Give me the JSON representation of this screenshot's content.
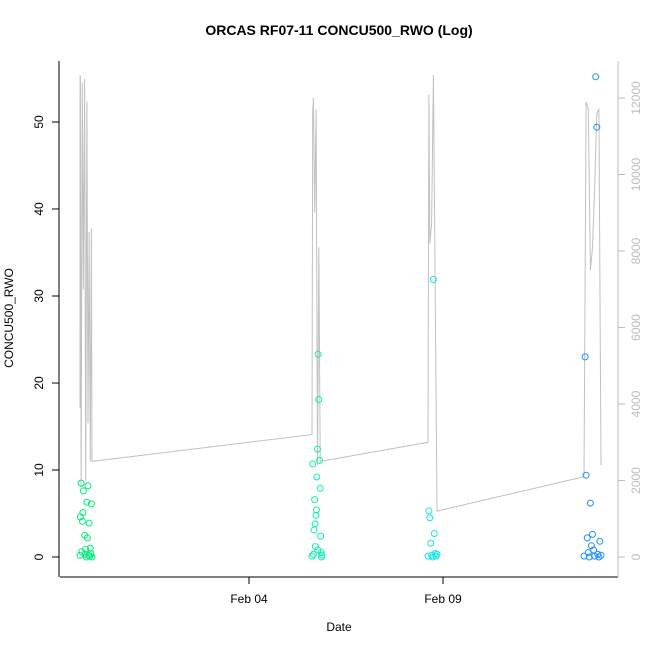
{
  "chart_data": {
    "type": "scatter",
    "title": "ORCAS RF07-11 CONCU500_RWO (Log)",
    "xlabel": "Date",
    "ylabel": "CONCU500_RWO",
    "x_ticks": [
      "Feb 04",
      "Feb 09"
    ],
    "y_ticks": [
      "0",
      "10",
      "20",
      "30",
      "40",
      "50"
    ],
    "y2_ticks": [
      "0",
      "2000",
      "4000",
      "6000",
      "8000",
      "10000",
      "12000"
    ],
    "ylim": [
      -0.5,
      57
    ],
    "y2lim": [
      -20,
      13000
    ],
    "xlim": [
      "2016-01-28",
      "2016-02-13"
    ],
    "colors": {
      "axis": "#000000",
      "y2_axis": "#bdbdbd",
      "line": "#c0c0c0",
      "flight_1": "#00ee7a",
      "flight_2": "#11f0b0",
      "flight_3": "#14e6e6",
      "flight_4": "#1e90ff"
    },
    "secondary_line": [
      [
        "2016-01-28 10:00",
        3900
      ],
      [
        "2016-01-28 10:05",
        12600
      ],
      [
        "2016-01-28 10:20",
        12500
      ],
      [
        "2016-01-28 11:00",
        1800
      ],
      [
        "2016-01-28 12:00",
        12400
      ],
      [
        "2016-01-28 13:00",
        7000
      ],
      [
        "2016-01-28 14:00",
        12500
      ],
      [
        "2016-01-28 15:00",
        2000
      ],
      [
        "2016-01-28 16:00",
        11900
      ],
      [
        "2016-01-28 17:00",
        3500
      ],
      [
        "2016-01-28 18:00",
        8500
      ],
      [
        "2016-01-28 19:00",
        2500
      ],
      [
        "2016-01-28 20:00",
        8600
      ],
      [
        "2016-01-28 20:30",
        2500
      ],
      [
        "2016-02-05 00:00",
        3200
      ],
      [
        "2016-02-05 00:30",
        11600
      ],
      [
        "2016-02-05 01:00",
        12000
      ],
      [
        "2016-02-05 02:00",
        9000
      ],
      [
        "2016-02-05 03:00",
        11700
      ],
      [
        "2016-02-05 04:00",
        2400
      ],
      [
        "2016-02-05 05:00",
        8100
      ],
      [
        "2016-02-05 06:00",
        2500
      ],
      [
        "2016-02-10 00:00",
        3000
      ],
      [
        "2016-02-10 00:30",
        12100
      ],
      [
        "2016-02-10 01:00",
        8200
      ],
      [
        "2016-02-10 02:00",
        8700
      ],
      [
        "2016-02-10 03:00",
        12600
      ],
      [
        "2016-02-10 04:00",
        7000
      ],
      [
        "2016-02-10 05:00",
        1200
      ],
      [
        "2016-02-13 12:00",
        2100
      ],
      [
        "2016-02-13 13:00",
        11900
      ],
      [
        "2016-02-13 14:00",
        11700
      ],
      [
        "2016-02-13 15:00",
        7500
      ],
      [
        "2016-02-13 16:00",
        8100
      ],
      [
        "2016-02-13 17:00",
        9600
      ],
      [
        "2016-02-13 18:00",
        11600
      ],
      [
        "2016-02-13 19:00",
        11700
      ],
      [
        "2016-02-13 20:00",
        2400
      ]
    ],
    "series": [
      {
        "color": "#00ee7a",
        "x": [
          "2016-01-28 10:00",
          "2016-01-28 10:20",
          "2016-01-28 11:00",
          "2016-01-28 12:00",
          "2016-01-28 13:00",
          "2016-01-28 14:00",
          "2016-01-28 15:00",
          "2016-01-28 16:00",
          "2016-01-28 17:00",
          "2016-01-28 18:00",
          "2016-01-28 19:00",
          "2016-01-28 19:30",
          "2016-01-28 20:00",
          "2016-01-28 20:30",
          "2016-01-28 12:30",
          "2016-01-28 14:30",
          "2016-01-28 16:30",
          "2016-01-28 18:30",
          "2016-01-28 11:30",
          "2016-01-28 15:30",
          "2016-01-28 17:30"
        ],
        "y": [
          0.2,
          4.6,
          8.5,
          4.1,
          7.6,
          2.5,
          0.9,
          6.3,
          8.2,
          3.9,
          1.0,
          0.4,
          6.1,
          0.0,
          5.1,
          0.3,
          2.2,
          0.1,
          0.6,
          0.0,
          0.2
        ]
      },
      {
        "color": "#11f0b0",
        "x": [
          "2016-02-05 00:00",
          "2016-02-05 00:30",
          "2016-02-05 01:00",
          "2016-02-05 01:30",
          "2016-02-05 02:00",
          "2016-02-05 02:30",
          "2016-02-05 03:00",
          "2016-02-05 03:30",
          "2016-02-05 04:00",
          "2016-02-05 04:30",
          "2016-02-05 05:00",
          "2016-02-05 05:30",
          "2016-02-05 06:00",
          "2016-02-05 06:20",
          "2016-02-05 06:40",
          "2016-02-05 07:00",
          "2016-02-05 07:20",
          "2016-02-05 02:15",
          "2016-02-05 03:15",
          "2016-02-05 04:15"
        ],
        "y": [
          0.1,
          10.7,
          0.3,
          3.1,
          6.6,
          1.2,
          4.8,
          9.2,
          12.4,
          23.3,
          18.1,
          11.1,
          7.9,
          2.4,
          0.5,
          0.0,
          0.2,
          3.8,
          5.4,
          0.8
        ]
      },
      {
        "color": "#14e6e6",
        "x": [
          "2016-02-10 00:00",
          "2016-02-10 00:30",
          "2016-02-10 01:00",
          "2016-02-10 01:30",
          "2016-02-10 02:00",
          "2016-02-10 02:30",
          "2016-02-10 03:00",
          "2016-02-10 03:30",
          "2016-02-10 04:00",
          "2016-02-10 04:30",
          "2016-02-10 05:00"
        ],
        "y": [
          0.1,
          5.3,
          4.5,
          1.6,
          0.2,
          0.0,
          31.9,
          2.7,
          0.4,
          0.1,
          0.3
        ]
      },
      {
        "color": "#1e90ff",
        "x": [
          "2016-02-13 12:00",
          "2016-02-13 12:30",
          "2016-02-13 13:00",
          "2016-02-13 13:30",
          "2016-02-13 14:00",
          "2016-02-13 14:30",
          "2016-02-13 15:00",
          "2016-02-13 15:30",
          "2016-02-13 16:00",
          "2016-02-13 16:30",
          "2016-02-13 17:00",
          "2016-02-13 17:30",
          "2016-02-13 18:00",
          "2016-02-13 18:30",
          "2016-02-13 19:00",
          "2016-02-13 19:30",
          "2016-02-13 20:00"
        ],
        "y": [
          0.1,
          23.0,
          9.4,
          2.2,
          0.5,
          0.0,
          6.2,
          1.3,
          2.6,
          0.8,
          0.1,
          55.2,
          49.4,
          0.3,
          0.0,
          1.8,
          0.2
        ]
      }
    ]
  }
}
